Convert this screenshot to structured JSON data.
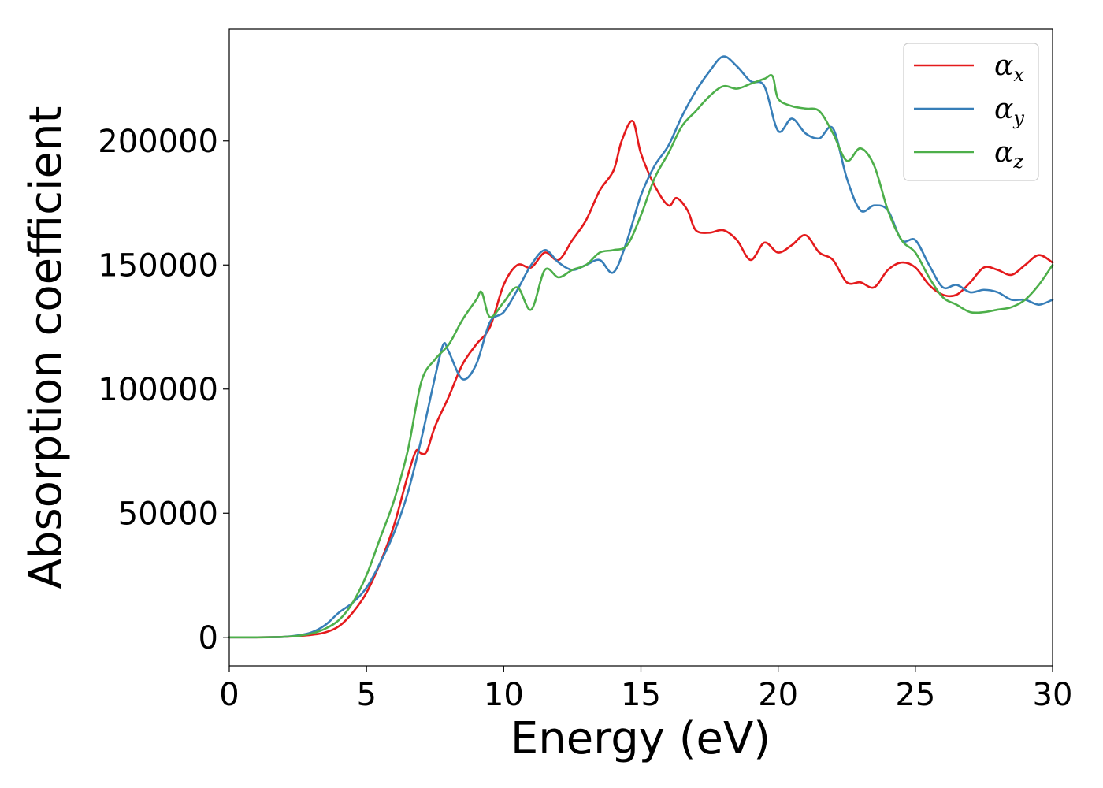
{
  "chart_data": {
    "type": "line",
    "xlabel": "Energy (eV)",
    "ylabel": "Absorption coefficient",
    "xlim": [
      0,
      30
    ],
    "ylim": [
      -11500,
      245000
    ],
    "xticks": [
      0,
      5,
      10,
      15,
      20,
      25,
      30
    ],
    "yticks": [
      0,
      50000,
      100000,
      150000,
      200000
    ],
    "grid": false,
    "legend_position": "top-right",
    "series": [
      {
        "name": "α_x",
        "symbol": "α",
        "subscript": "x",
        "color": "#e41a1c",
        "x": [
          0,
          1,
          2,
          2.5,
          3,
          3.5,
          4,
          4.5,
          5,
          5.5,
          6,
          6.5,
          6.8,
          7,
          7.2,
          7.5,
          8,
          8.5,
          9,
          9.5,
          10,
          10.5,
          11,
          11.5,
          12,
          12.5,
          13,
          13.5,
          14,
          14.3,
          14.7,
          15,
          15.5,
          16,
          16.3,
          16.7,
          17,
          17.5,
          18,
          18.5,
          19,
          19.5,
          20,
          20.5,
          21,
          21.5,
          22,
          22.5,
          23,
          23.5,
          24,
          24.5,
          25,
          25.5,
          26,
          26.5,
          27,
          27.5,
          28,
          28.5,
          29,
          29.5,
          30
        ],
        "y": [
          0,
          0,
          200,
          500,
          1000,
          2000,
          4500,
          10000,
          18000,
          30000,
          45000,
          65000,
          75000,
          74000,
          75000,
          85000,
          97000,
          110000,
          118000,
          125000,
          142000,
          150000,
          149000,
          155000,
          152000,
          160000,
          168000,
          180000,
          188000,
          200000,
          208000,
          195000,
          182000,
          174000,
          177000,
          172000,
          164000,
          163000,
          164000,
          160000,
          152000,
          159000,
          155000,
          158000,
          162000,
          155000,
          152000,
          143000,
          143000,
          141000,
          148000,
          151000,
          149000,
          142000,
          138000,
          138000,
          143000,
          149000,
          148000,
          146000,
          150000,
          154000,
          151000
        ]
      },
      {
        "name": "α_y",
        "symbol": "α",
        "subscript": "y",
        "color": "#377eb8",
        "x": [
          0,
          1,
          2,
          2.5,
          3,
          3.5,
          4,
          4.5,
          5,
          5.5,
          6,
          6.5,
          7,
          7.5,
          7.8,
          8,
          8.5,
          9,
          9.5,
          10,
          10.5,
          11,
          11.5,
          12,
          12.5,
          13,
          13.5,
          14,
          14.5,
          15,
          15.5,
          16,
          16.5,
          17,
          17.5,
          18,
          18.5,
          19,
          19.5,
          20,
          20.5,
          21,
          21.5,
          22,
          22.5,
          23,
          23.5,
          24,
          24.5,
          25,
          25.5,
          26,
          26.5,
          27,
          27.5,
          28,
          28.5,
          29,
          29.5,
          30
        ],
        "y": [
          0,
          0,
          200,
          800,
          2000,
          5000,
          10000,
          14000,
          20000,
          30000,
          42000,
          58000,
          80000,
          105000,
          118000,
          115000,
          104000,
          110000,
          127000,
          131000,
          140000,
          150000,
          156000,
          151000,
          148000,
          150000,
          152000,
          147000,
          160000,
          178000,
          190000,
          198000,
          210000,
          220000,
          228000,
          234000,
          230000,
          224000,
          222000,
          204000,
          209000,
          203000,
          201000,
          205000,
          185000,
          172000,
          174000,
          172000,
          160000,
          160000,
          150000,
          141000,
          142000,
          139000,
          140000,
          139000,
          136000,
          136000,
          134000,
          136000
        ]
      },
      {
        "name": "α_z",
        "symbol": "α",
        "subscript": "z",
        "color": "#4daf4a",
        "x": [
          0,
          1,
          2,
          2.5,
          3,
          3.5,
          4,
          4.5,
          5,
          5.5,
          6,
          6.5,
          7,
          7.5,
          8,
          8.5,
          9,
          9.2,
          9.5,
          10,
          10.5,
          11,
          11.5,
          12,
          12.5,
          13,
          13.5,
          14,
          14.5,
          15,
          15.5,
          16,
          16.5,
          17,
          17.5,
          18,
          18.5,
          19,
          19.5,
          19.8,
          20,
          20.5,
          21,
          21.5,
          22,
          22.5,
          23,
          23.5,
          24,
          24.5,
          25,
          25.5,
          26,
          26.5,
          27,
          27.5,
          28,
          28.5,
          29,
          29.5,
          30
        ],
        "y": [
          0,
          0,
          200,
          600,
          1500,
          3500,
          7000,
          14000,
          25000,
          40000,
          55000,
          75000,
          103000,
          112000,
          118000,
          128000,
          136000,
          139000,
          129000,
          135000,
          141000,
          132000,
          148000,
          145000,
          148000,
          150000,
          155000,
          156000,
          158000,
          170000,
          185000,
          195000,
          206000,
          212000,
          218000,
          222000,
          221000,
          223000,
          225000,
          226000,
          217000,
          214000,
          213000,
          212000,
          203000,
          192000,
          197000,
          190000,
          172000,
          160000,
          155000,
          145000,
          137000,
          134000,
          131000,
          131000,
          132000,
          133000,
          136000,
          142000,
          150000
        ]
      }
    ]
  }
}
